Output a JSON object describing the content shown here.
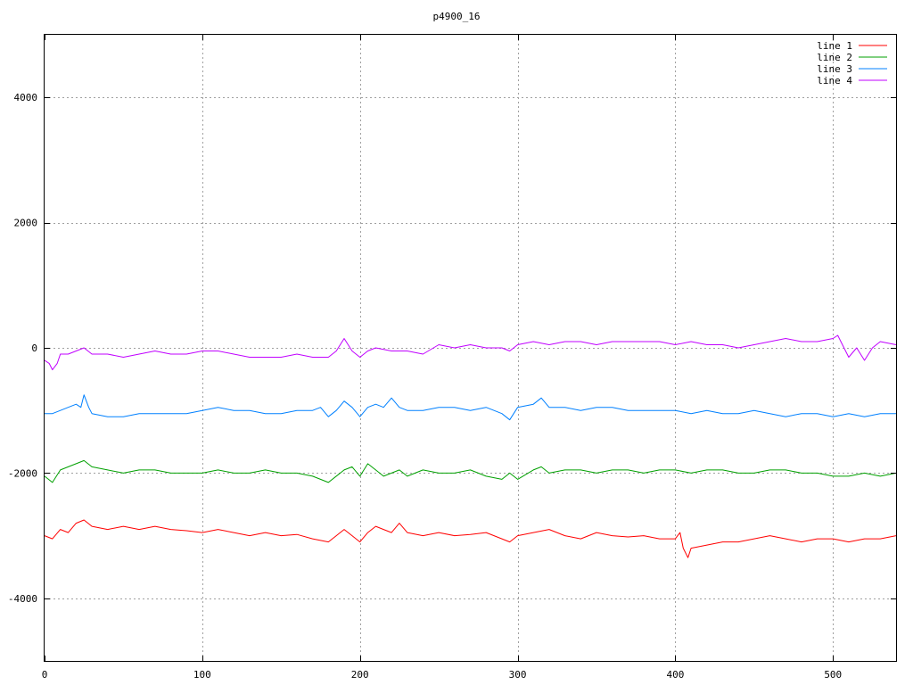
{
  "chart_data": {
    "type": "line",
    "title": "p4900_16",
    "xlabel": "",
    "ylabel": "",
    "xlim": [
      0,
      540
    ],
    "ylim": [
      -5000,
      5000
    ],
    "x_ticks": [
      0,
      100,
      200,
      300,
      400,
      500
    ],
    "y_ticks": [
      -4000,
      -2000,
      0,
      2000,
      4000
    ],
    "y_tick_labels": [
      "-4000",
      "-2000",
      "0",
      "2000",
      "4000"
    ],
    "grid": true,
    "legend_position": "top-right",
    "series": [
      {
        "name": "line 1",
        "color": "#ff0000",
        "x": [
          0,
          5,
          10,
          15,
          20,
          25,
          30,
          40,
          50,
          60,
          70,
          80,
          90,
          100,
          110,
          120,
          130,
          140,
          150,
          160,
          170,
          180,
          185,
          190,
          195,
          200,
          205,
          210,
          215,
          220,
          225,
          230,
          240,
          250,
          260,
          270,
          280,
          290,
          295,
          300,
          310,
          320,
          330,
          340,
          350,
          360,
          370,
          380,
          390,
          400,
          403,
          405,
          408,
          410,
          420,
          430,
          440,
          450,
          460,
          470,
          480,
          490,
          500,
          510,
          520,
          530,
          540
        ],
        "y": [
          -3000,
          -3050,
          -2900,
          -2950,
          -2800,
          -2750,
          -2850,
          -2900,
          -2850,
          -2900,
          -2850,
          -2900,
          -2920,
          -2950,
          -2900,
          -2950,
          -3000,
          -2950,
          -3000,
          -2980,
          -3050,
          -3100,
          -3000,
          -2900,
          -3000,
          -3100,
          -2950,
          -2850,
          -2900,
          -2950,
          -2800,
          -2950,
          -3000,
          -2950,
          -3000,
          -2980,
          -2950,
          -3050,
          -3100,
          -3000,
          -2950,
          -2900,
          -3000,
          -3050,
          -2950,
          -3000,
          -3020,
          -3000,
          -3050,
          -3050,
          -2950,
          -3200,
          -3350,
          -3200,
          -3150,
          -3100,
          -3100,
          -3050,
          -3000,
          -3050,
          -3100,
          -3050,
          -3050,
          -3100,
          -3050,
          -3050,
          -3000
        ]
      },
      {
        "name": "line 2",
        "color": "#00a000",
        "x": [
          0,
          5,
          10,
          15,
          20,
          25,
          30,
          40,
          50,
          60,
          70,
          80,
          90,
          100,
          110,
          120,
          130,
          140,
          150,
          160,
          170,
          180,
          190,
          195,
          200,
          205,
          210,
          215,
          220,
          225,
          230,
          240,
          250,
          260,
          270,
          280,
          290,
          295,
          300,
          310,
          315,
          320,
          330,
          340,
          350,
          360,
          370,
          380,
          390,
          400,
          410,
          420,
          430,
          440,
          450,
          460,
          470,
          480,
          490,
          500,
          510,
          520,
          530,
          540
        ],
        "y": [
          -2050,
          -2150,
          -1950,
          -1900,
          -1850,
          -1800,
          -1900,
          -1950,
          -2000,
          -1950,
          -1950,
          -2000,
          -2000,
          -2000,
          -1950,
          -2000,
          -2000,
          -1950,
          -2000,
          -2000,
          -2050,
          -2150,
          -1950,
          -1900,
          -2050,
          -1850,
          -1950,
          -2050,
          -2000,
          -1950,
          -2050,
          -1950,
          -2000,
          -2000,
          -1950,
          -2050,
          -2100,
          -2000,
          -2100,
          -1950,
          -1900,
          -2000,
          -1950,
          -1950,
          -2000,
          -1950,
          -1950,
          -2000,
          -1950,
          -1950,
          -2000,
          -1950,
          -1950,
          -2000,
          -2000,
          -1950,
          -1950,
          -2000,
          -2000,
          -2050,
          -2050,
          -2000,
          -2050,
          -2000
        ]
      },
      {
        "name": "line 3",
        "color": "#0080ff",
        "x": [
          0,
          5,
          10,
          15,
          20,
          23,
          25,
          28,
          30,
          40,
          50,
          60,
          70,
          80,
          90,
          100,
          110,
          120,
          130,
          140,
          150,
          160,
          170,
          175,
          180,
          185,
          190,
          195,
          200,
          205,
          210,
          215,
          220,
          225,
          230,
          240,
          250,
          260,
          270,
          280,
          290,
          295,
          300,
          310,
          315,
          320,
          330,
          340,
          350,
          360,
          370,
          380,
          390,
          400,
          410,
          420,
          430,
          440,
          450,
          460,
          470,
          480,
          490,
          500,
          510,
          520,
          530,
          540
        ],
        "y": [
          -1050,
          -1050,
          -1000,
          -950,
          -900,
          -950,
          -750,
          -950,
          -1050,
          -1100,
          -1100,
          -1050,
          -1050,
          -1050,
          -1050,
          -1000,
          -950,
          -1000,
          -1000,
          -1050,
          -1050,
          -1000,
          -1000,
          -950,
          -1100,
          -1000,
          -850,
          -950,
          -1100,
          -950,
          -900,
          -950,
          -800,
          -950,
          -1000,
          -1000,
          -950,
          -950,
          -1000,
          -950,
          -1050,
          -1150,
          -950,
          -900,
          -800,
          -950,
          -950,
          -1000,
          -950,
          -950,
          -1000,
          -1000,
          -1000,
          -1000,
          -1050,
          -1000,
          -1050,
          -1050,
          -1000,
          -1050,
          -1100,
          -1050,
          -1050,
          -1100,
          -1050,
          -1100,
          -1050,
          -1050
        ]
      },
      {
        "name": "line 4",
        "color": "#c000ff",
        "x": [
          0,
          3,
          5,
          8,
          10,
          15,
          20,
          25,
          30,
          40,
          50,
          60,
          70,
          80,
          90,
          100,
          110,
          120,
          130,
          140,
          150,
          160,
          170,
          180,
          185,
          190,
          195,
          200,
          205,
          210,
          220,
          230,
          240,
          250,
          260,
          270,
          280,
          290,
          295,
          300,
          310,
          320,
          330,
          340,
          350,
          360,
          370,
          380,
          390,
          400,
          410,
          420,
          430,
          440,
          450,
          460,
          470,
          480,
          490,
          500,
          503,
          505,
          510,
          515,
          520,
          525,
          530,
          540
        ],
        "y": [
          -200,
          -250,
          -350,
          -250,
          -100,
          -100,
          -50,
          0,
          -100,
          -100,
          -150,
          -100,
          -50,
          -100,
          -100,
          -50,
          -50,
          -100,
          -150,
          -150,
          -150,
          -100,
          -150,
          -150,
          -50,
          150,
          -50,
          -150,
          -50,
          0,
          -50,
          -50,
          -100,
          50,
          0,
          50,
          0,
          0,
          -50,
          50,
          100,
          50,
          100,
          100,
          50,
          100,
          100,
          100,
          100,
          50,
          100,
          50,
          50,
          0,
          50,
          100,
          150,
          100,
          100,
          150,
          200,
          100,
          -150,
          0,
          -200,
          0,
          100,
          50
        ]
      }
    ]
  }
}
